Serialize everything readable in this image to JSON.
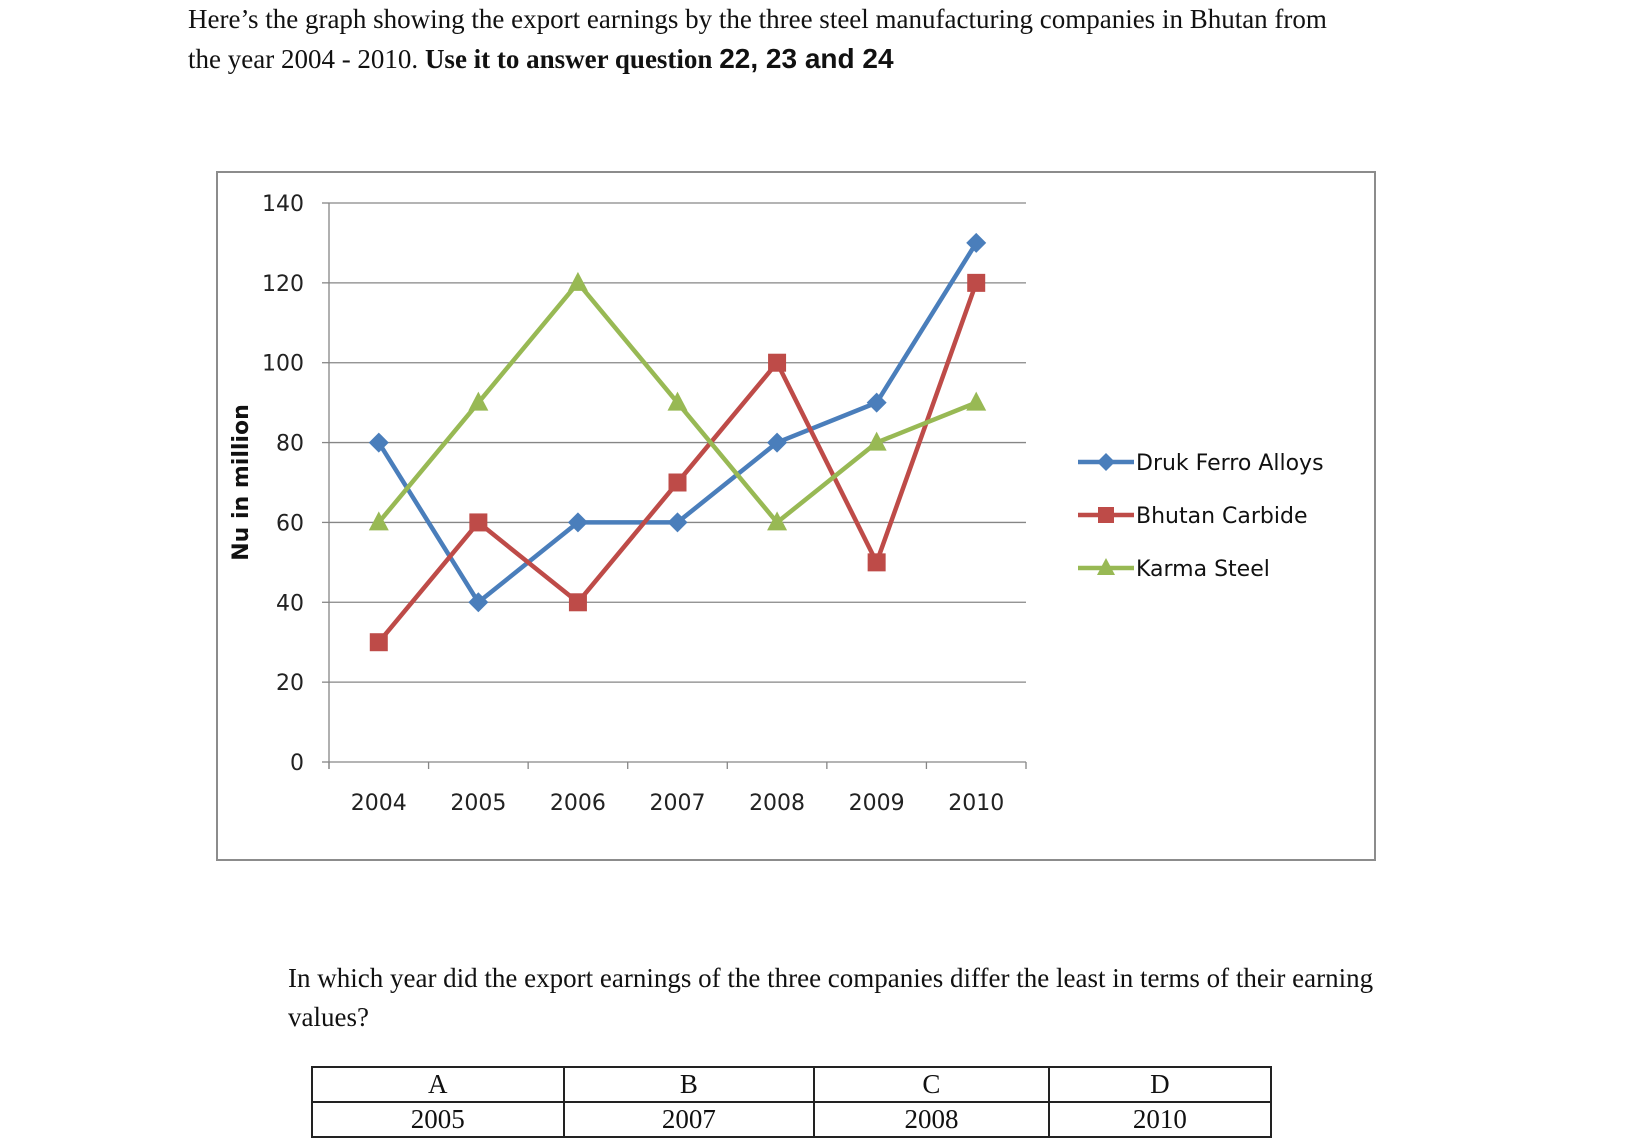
{
  "intro": {
    "line1": "Here’s the graph showing the export earnings by the three steel manufacturing companies in Bhutan from",
    "line2_plain": "the year 2004 - 2010. ",
    "line2_bold": "Use it to answer question ",
    "line2_numbers": "22, 23 and 24"
  },
  "chart_data": {
    "type": "line",
    "title": "",
    "xlabel": "",
    "ylabel": "Nu in million",
    "categories": [
      "2004",
      "2005",
      "2006",
      "2007",
      "2008",
      "2009",
      "2010"
    ],
    "ylim": [
      0,
      140
    ],
    "yticks": [
      0,
      20,
      40,
      60,
      80,
      100,
      120,
      140
    ],
    "grid": true,
    "legend_position": "right",
    "series": [
      {
        "name": "Druk Ferro Alloys",
        "values": [
          80,
          40,
          60,
          60,
          80,
          90,
          130
        ],
        "color": "#4a7ebb",
        "marker": "diamond"
      },
      {
        "name": "Bhutan Carbide",
        "values": [
          30,
          60,
          40,
          70,
          100,
          50,
          120
        ],
        "color": "#be4b48",
        "marker": "square"
      },
      {
        "name": "Karma Steel",
        "values": [
          60,
          90,
          120,
          90,
          60,
          80,
          90
        ],
        "color": "#98b954",
        "marker": "triangle"
      }
    ]
  },
  "question": {
    "text": "In which year did the export earnings of the three companies differ the least in terms of their earning values?"
  },
  "options": [
    {
      "letter": "A",
      "value": "2005"
    },
    {
      "letter": "B",
      "value": "2007"
    },
    {
      "letter": "C",
      "value": "2008"
    },
    {
      "letter": "D",
      "value": "2010"
    }
  ]
}
